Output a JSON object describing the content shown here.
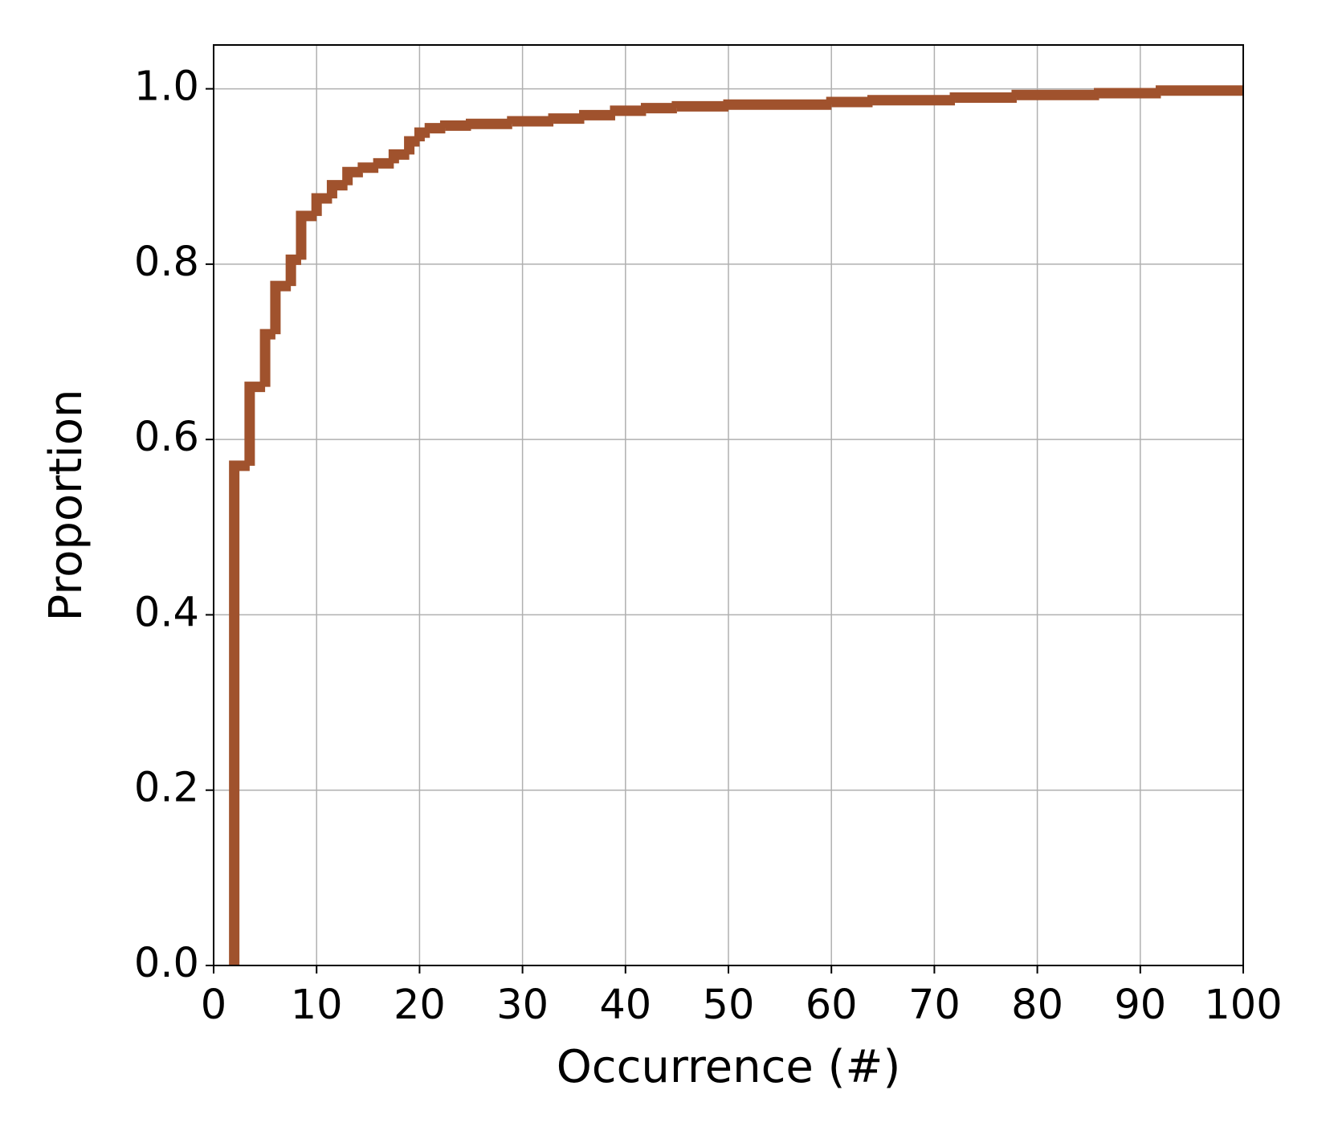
{
  "chart_data": {
    "type": "ecdf",
    "x_label": "Occurrence (#)",
    "y_label": "Proportion",
    "x": [
      2,
      3.5,
      5,
      6,
      7.5,
      8.5,
      10,
      11.5,
      13,
      14.5,
      16,
      17.5,
      19,
      20,
      21,
      22.5,
      25,
      29,
      33,
      36,
      39,
      42,
      45,
      50,
      60,
      64,
      72,
      78,
      86,
      92
    ],
    "values": [
      0.57,
      0.66,
      0.72,
      0.775,
      0.805,
      0.855,
      0.875,
      0.89,
      0.905,
      0.91,
      0.915,
      0.925,
      0.94,
      0.95,
      0.955,
      0.958,
      0.96,
      0.963,
      0.966,
      0.97,
      0.975,
      0.978,
      0.98,
      0.982,
      0.985,
      0.987,
      0.99,
      0.993,
      0.995,
      0.998
    ],
    "color": "#a0522d",
    "xlim": [
      0,
      100
    ],
    "xticks": [
      0,
      10,
      20,
      30,
      40,
      50,
      60,
      70,
      80,
      90,
      100
    ],
    "ylim": [
      0,
      1.05
    ],
    "yticks": [
      {
        "value": 0,
        "label": "0.0"
      },
      0.2,
      0.4,
      0.6,
      0.8,
      {
        "value": 1,
        "label": "1.0"
      }
    ],
    "grid": true
  }
}
